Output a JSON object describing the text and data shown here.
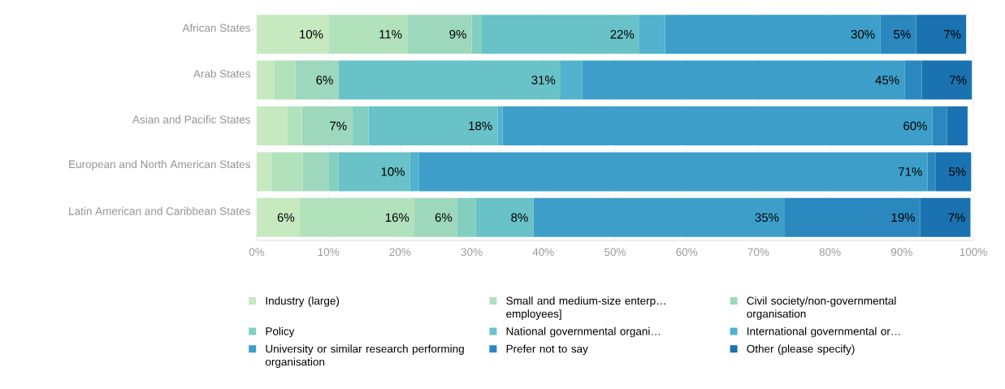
{
  "chart_data": {
    "type": "bar",
    "orientation": "horizontal",
    "stacked": true,
    "grid": "x",
    "legend": "bottom",
    "categories": [
      "African States",
      "Arab States",
      "Asian and Pacific States",
      "European and North American States",
      "Latin American and Caribbean States"
    ],
    "xlim": [
      0,
      100
    ],
    "xticks": [
      {
        "value": 0,
        "label": "0%"
      },
      {
        "value": 10,
        "label": "10%"
      },
      {
        "value": 20,
        "label": "20%"
      },
      {
        "value": 30,
        "label": "30%"
      },
      {
        "value": 40,
        "label": "40%"
      },
      {
        "value": 50,
        "label": "50%"
      },
      {
        "value": 60,
        "label": "60%"
      },
      {
        "value": 70,
        "label": "70%"
      },
      {
        "value": 80,
        "label": "80%"
      },
      {
        "value": 90,
        "label": "90%"
      },
      {
        "value": 100,
        "label": "100%"
      }
    ],
    "series": [
      {
        "name": "Industry (large)",
        "color": "#c7e9c0",
        "values": [
          10,
          2.4,
          4.3,
          2.0,
          6
        ],
        "value_labels": [
          "10%",
          null,
          null,
          null,
          "6%"
        ]
      },
      {
        "name": "Small and medium-size enterp… employees]",
        "color": "#b2e2bc",
        "values": [
          11,
          3.0,
          2.0,
          4.4,
          16
        ],
        "value_labels": [
          "11%",
          null,
          null,
          null,
          "16%"
        ]
      },
      {
        "name": "Civil society/non-governmental organisation",
        "color": "#9dd8bc",
        "values": [
          9,
          6,
          7,
          3.7,
          6
        ],
        "value_labels": [
          "9%",
          "6%",
          "7%",
          null,
          "6%"
        ]
      },
      {
        "name": "Policy",
        "color": "#82cfc0",
        "values": [
          1.4,
          0,
          2.3,
          1.3,
          2.6
        ],
        "value_labels": [
          null,
          null,
          null,
          null,
          null
        ]
      },
      {
        "name": "National governmental organi…",
        "color": "#68c2c8",
        "values": [
          22,
          31,
          18,
          10,
          8
        ],
        "value_labels": [
          "22%",
          "31%",
          "18%",
          "10%",
          "8%"
        ]
      },
      {
        "name": "International governmental or…",
        "color": "#52b2cf",
        "values": [
          3.6,
          3.0,
          0.7,
          1.2,
          0
        ],
        "value_labels": [
          null,
          null,
          null,
          null,
          null
        ]
      },
      {
        "name": "University or similar research performing organisation",
        "color": "#3d9fc9",
        "values": [
          30,
          45,
          60,
          71,
          35
        ],
        "value_labels": [
          "30%",
          "45%",
          "60%",
          "71%",
          "35%"
        ]
      },
      {
        "name": "Prefer not to say",
        "color": "#2a88bf",
        "values": [
          5,
          2.4,
          2.0,
          1.1,
          19
        ],
        "value_labels": [
          "5%",
          null,
          null,
          null,
          "19%"
        ]
      },
      {
        "name": "Other (please specify)",
        "color": "#1a72b0",
        "values": [
          7,
          7,
          2.9,
          5,
          7
        ],
        "value_labels": [
          "7%",
          "7%",
          null,
          "5%",
          "7%"
        ]
      }
    ]
  }
}
